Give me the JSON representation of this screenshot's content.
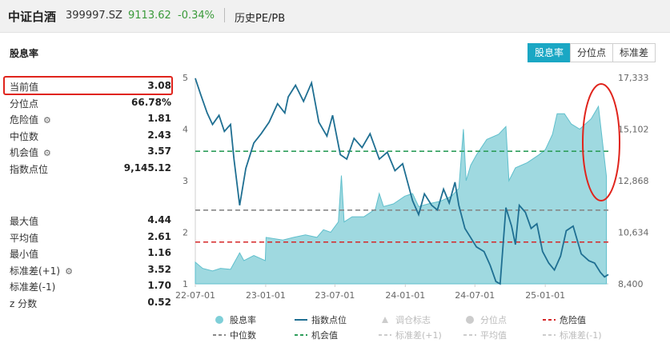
{
  "header": {
    "name": "中证白酒",
    "code": "399997.SZ",
    "price": "9113.62",
    "change": "-0.34%",
    "tab": "历史PE/PB"
  },
  "panel": {
    "title": "股息率",
    "buttons": [
      "股息率",
      "分位点",
      "标准差"
    ],
    "active_button": 0
  },
  "stats_top": [
    {
      "label": "当前值",
      "value": "3.08",
      "gear": false
    },
    {
      "label": "分位点",
      "value": "66.78%",
      "gear": false
    },
    {
      "label": "危险值",
      "value": "1.81",
      "gear": true
    },
    {
      "label": "中位数",
      "value": "2.43",
      "gear": false
    },
    {
      "label": "机会值",
      "value": "3.57",
      "gear": true
    },
    {
      "label": "指数点位",
      "value": "9,145.12",
      "gear": false
    }
  ],
  "stats_bottom": [
    {
      "label": "最大值",
      "value": "4.44",
      "gear": false
    },
    {
      "label": "平均值",
      "value": "2.61",
      "gear": false
    },
    {
      "label": "最小值",
      "value": "1.16",
      "gear": false
    },
    {
      "label": "标准差(+1)",
      "value": "3.52",
      "gear": true
    },
    {
      "label": "标准差(-1)",
      "value": "1.70",
      "gear": false
    },
    {
      "label": "z 分数",
      "value": "0.52",
      "gear": false
    }
  ],
  "colors": {
    "area": "#8ed2da",
    "area_line": "#5fbfcc",
    "index_line": "#1f6f92",
    "danger": "#d62728",
    "median": "#888888",
    "opportunity": "#2e9e5b",
    "highlight": "#e0241c"
  },
  "chart_data": {
    "type": "area",
    "x_tick_labels": [
      "22-07-01",
      "23-01-01",
      "23-07-01",
      "24-01-01",
      "24-07-01",
      "25-01-01"
    ],
    "x_range": [
      "2022-07-01",
      "2025-06-15"
    ],
    "y_left": {
      "ticks": [
        "1",
        "2",
        "3",
        "4",
        "5"
      ],
      "range": [
        1,
        5
      ]
    },
    "y_right": {
      "ticks": [
        "8,400",
        "10,634",
        "12,868",
        "15,102",
        "17,333"
      ],
      "range": [
        8400,
        17333
      ]
    },
    "reference_lines": [
      {
        "name": "机会值",
        "value": 3.57,
        "style": "dashed",
        "color": "#2e9e5b"
      },
      {
        "name": "中位数",
        "value": 2.43,
        "style": "dashed",
        "color": "#888888"
      },
      {
        "name": "危险值",
        "value": 1.81,
        "style": "dashed",
        "color": "#d62728"
      }
    ],
    "series": [
      {
        "name": "股息率",
        "axis": "left",
        "points": [
          [
            "2022-07-01",
            1.42
          ],
          [
            "2022-07-20",
            1.3
          ],
          [
            "2022-08-15",
            1.25
          ],
          [
            "2022-09-05",
            1.3
          ],
          [
            "2022-10-01",
            1.28
          ],
          [
            "2022-10-25",
            1.6
          ],
          [
            "2022-11-05",
            1.45
          ],
          [
            "2022-12-01",
            1.55
          ],
          [
            "2022-12-31",
            1.45
          ],
          [
            "2023-01-02",
            1.9
          ],
          [
            "2023-02-15",
            1.85
          ],
          [
            "2023-03-15",
            1.9
          ],
          [
            "2023-04-15",
            1.95
          ],
          [
            "2023-05-15",
            1.9
          ],
          [
            "2023-06-01",
            2.05
          ],
          [
            "2023-06-20",
            2.0
          ],
          [
            "2023-07-10",
            2.2
          ],
          [
            "2023-07-18",
            3.1
          ],
          [
            "2023-07-25",
            2.2
          ],
          [
            "2023-08-15",
            2.3
          ],
          [
            "2023-09-15",
            2.3
          ],
          [
            "2023-10-15",
            2.45
          ],
          [
            "2023-10-25",
            2.75
          ],
          [
            "2023-11-05",
            2.5
          ],
          [
            "2023-12-01",
            2.55
          ],
          [
            "2023-12-31",
            2.7
          ],
          [
            "2024-01-20",
            2.75
          ],
          [
            "2024-02-05",
            2.5
          ],
          [
            "2024-03-01",
            2.55
          ],
          [
            "2024-04-01",
            2.6
          ],
          [
            "2024-05-01",
            2.7
          ],
          [
            "2024-05-20",
            2.85
          ],
          [
            "2024-06-01",
            4.0
          ],
          [
            "2024-06-08",
            3.0
          ],
          [
            "2024-06-20",
            3.3
          ],
          [
            "2024-07-05",
            3.5
          ],
          [
            "2024-08-01",
            3.8
          ],
          [
            "2024-09-01",
            3.9
          ],
          [
            "2024-09-20",
            4.05
          ],
          [
            "2024-09-28",
            3.0
          ],
          [
            "2024-10-15",
            3.25
          ],
          [
            "2024-11-15",
            3.35
          ],
          [
            "2024-12-15",
            3.5
          ],
          [
            "2025-01-01",
            3.6
          ],
          [
            "2025-01-20",
            3.9
          ],
          [
            "2025-02-01",
            4.3
          ],
          [
            "2025-02-20",
            4.3
          ],
          [
            "2025-03-10",
            4.1
          ],
          [
            "2025-04-01",
            4.0
          ],
          [
            "2025-05-01",
            4.2
          ],
          [
            "2025-05-20",
            4.44
          ],
          [
            "2025-06-10",
            3.08
          ]
        ]
      },
      {
        "name": "指数点位",
        "axis": "right",
        "points": [
          [
            "2022-07-01",
            17300
          ],
          [
            "2022-07-15",
            16600
          ],
          [
            "2022-08-01",
            15800
          ],
          [
            "2022-08-15",
            15300
          ],
          [
            "2022-09-01",
            15700
          ],
          [
            "2022-09-15",
            15000
          ],
          [
            "2022-10-01",
            15300
          ],
          [
            "2022-10-10",
            13800
          ],
          [
            "2022-10-25",
            11800
          ],
          [
            "2022-11-10",
            13400
          ],
          [
            "2022-12-01",
            14500
          ],
          [
            "2022-12-20",
            14900
          ],
          [
            "2023-01-10",
            15400
          ],
          [
            "2023-02-01",
            16200
          ],
          [
            "2023-02-20",
            15800
          ],
          [
            "2023-03-01",
            16500
          ],
          [
            "2023-03-20",
            17000
          ],
          [
            "2023-04-10",
            16300
          ],
          [
            "2023-05-01",
            17100
          ],
          [
            "2023-05-20",
            15400
          ],
          [
            "2023-06-10",
            14800
          ],
          [
            "2023-06-25",
            15700
          ],
          [
            "2023-07-15",
            14000
          ],
          [
            "2023-08-01",
            13800
          ],
          [
            "2023-08-20",
            14700
          ],
          [
            "2023-09-10",
            14300
          ],
          [
            "2023-10-01",
            14900
          ],
          [
            "2023-10-25",
            13800
          ],
          [
            "2023-11-15",
            14100
          ],
          [
            "2023-12-05",
            13300
          ],
          [
            "2023-12-25",
            13600
          ],
          [
            "2024-01-20",
            12000
          ],
          [
            "2024-02-05",
            11400
          ],
          [
            "2024-02-20",
            12300
          ],
          [
            "2024-03-10",
            11800
          ],
          [
            "2024-03-25",
            11600
          ],
          [
            "2024-04-10",
            12500
          ],
          [
            "2024-04-25",
            11900
          ],
          [
            "2024-05-10",
            12800
          ],
          [
            "2024-05-20",
            11800
          ],
          [
            "2024-06-05",
            10800
          ],
          [
            "2024-06-20",
            10400
          ],
          [
            "2024-07-05",
            10000
          ],
          [
            "2024-07-25",
            9800
          ],
          [
            "2024-08-10",
            9200
          ],
          [
            "2024-08-25",
            8500
          ],
          [
            "2024-09-05",
            8400
          ],
          [
            "2024-09-20",
            11700
          ],
          [
            "2024-10-05",
            10900
          ],
          [
            "2024-10-15",
            10100
          ],
          [
            "2024-10-25",
            11800
          ],
          [
            "2024-11-10",
            11500
          ],
          [
            "2024-11-25",
            10800
          ],
          [
            "2024-12-10",
            11000
          ],
          [
            "2024-12-25",
            9800
          ],
          [
            "2025-01-10",
            9300
          ],
          [
            "2025-01-25",
            9000
          ],
          [
            "2025-02-10",
            9600
          ],
          [
            "2025-02-25",
            10700
          ],
          [
            "2025-03-15",
            10900
          ],
          [
            "2025-04-05",
            9700
          ],
          [
            "2025-04-25",
            9400
          ],
          [
            "2025-05-10",
            9300
          ],
          [
            "2025-05-25",
            8900
          ],
          [
            "2025-06-05",
            8700
          ],
          [
            "2025-06-15",
            8800
          ]
        ]
      }
    ],
    "legend": [
      {
        "label": "股息率",
        "marker": "circle",
        "color": "#7fcfd8",
        "enabled": true
      },
      {
        "label": "指数点位",
        "marker": "line",
        "color": "#1f6f92",
        "enabled": true
      },
      {
        "label": "调仓标志",
        "marker": "triangle",
        "color": "#cccccc",
        "enabled": false
      },
      {
        "label": "分位点",
        "marker": "circle",
        "color": "#cccccc",
        "enabled": false
      },
      {
        "label": "危险值",
        "marker": "dash",
        "color": "#d62728",
        "enabled": true
      },
      {
        "label": "中位数",
        "marker": "dash",
        "color": "#888888",
        "enabled": true
      },
      {
        "label": "机会值",
        "marker": "dash",
        "color": "#2e9e5b",
        "enabled": true
      },
      {
        "label": "标准差(+1)",
        "marker": "dash",
        "color": "#cccccc",
        "enabled": false
      },
      {
        "label": "平均值",
        "marker": "dash",
        "color": "#cccccc",
        "enabled": false
      },
      {
        "label": "标准差(-1)",
        "marker": "dash",
        "color": "#cccccc",
        "enabled": false
      }
    ]
  }
}
